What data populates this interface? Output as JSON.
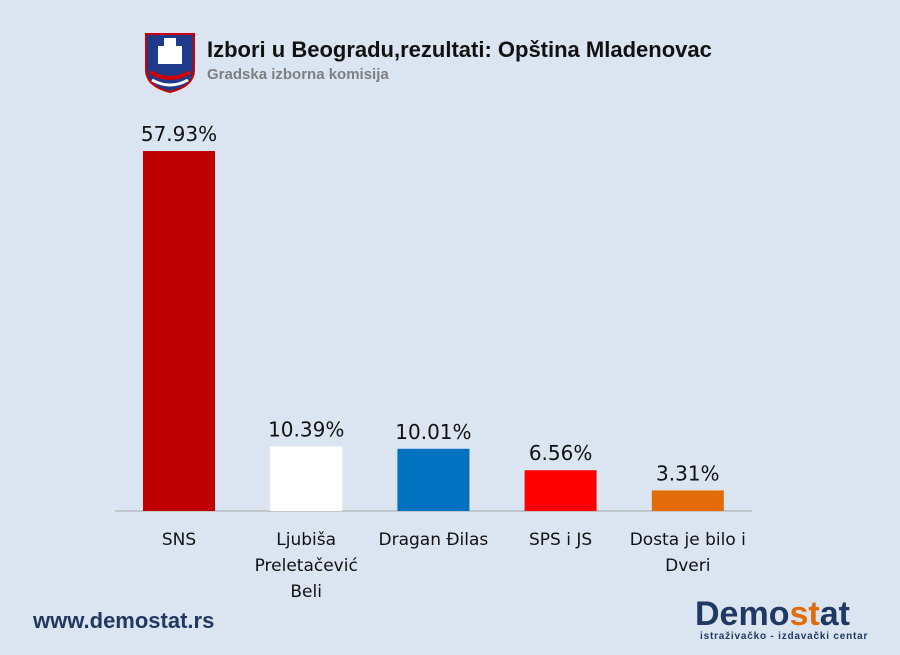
{
  "chart_data": {
    "type": "bar",
    "title": "Izbori u Beogradu,rezultati: Opština Mladenovac",
    "subtitle": "Gradska izborna komisija",
    "categories": [
      "SNS",
      "Ljubiša Preletačević Beli",
      "Dragan Đilas",
      "SPS i JS",
      "Dosta je bilo i Dveri"
    ],
    "values": [
      57.93,
      10.39,
      10.01,
      6.56,
      3.31
    ],
    "value_labels": [
      "57.93%",
      "10.39%",
      "10.01%",
      "6.56%",
      "3.31%"
    ],
    "colors": [
      "#c00000",
      "#ffffff",
      "#0070c0",
      "#ff0000",
      "#e36c09"
    ]
  },
  "footer": {
    "url": "www.demostat.rs",
    "brand": [
      "Demo",
      "st",
      "at"
    ],
    "tagline": "istraživačko - izdavački centar"
  }
}
